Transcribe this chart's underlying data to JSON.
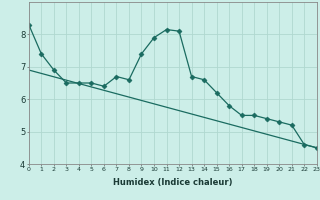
{
  "xlabel": "Humidex (Indice chaleur)",
  "background_color": "#cceee8",
  "grid_color": "#b0d8d0",
  "line_color": "#1a6b60",
  "xlim": [
    0,
    23
  ],
  "ylim": [
    4,
    9
  ],
  "yticks": [
    4,
    5,
    6,
    7,
    8
  ],
  "xticks": [
    0,
    1,
    2,
    3,
    4,
    5,
    6,
    7,
    8,
    9,
    10,
    11,
    12,
    13,
    14,
    15,
    16,
    17,
    18,
    19,
    20,
    21,
    22,
    23
  ],
  "series1_x": [
    0,
    1,
    2,
    3,
    4,
    5,
    6,
    7,
    8,
    9,
    10,
    11,
    12,
    13,
    14,
    15,
    16,
    17,
    18,
    19,
    20,
    21,
    22,
    23
  ],
  "series1_y": [
    8.3,
    7.4,
    6.9,
    6.5,
    6.5,
    6.5,
    6.4,
    6.7,
    6.6,
    7.4,
    7.9,
    8.15,
    8.1,
    6.7,
    6.6,
    6.2,
    5.8,
    5.5,
    5.5,
    5.4,
    5.3,
    5.2,
    4.6,
    4.5
  ],
  "series2_x": [
    0,
    23
  ],
  "series2_y": [
    6.9,
    4.5
  ],
  "marker": "D",
  "marker_size": 2.5,
  "xlabel_fontsize": 6,
  "tick_fontsize_x": 4.5,
  "tick_fontsize_y": 6
}
